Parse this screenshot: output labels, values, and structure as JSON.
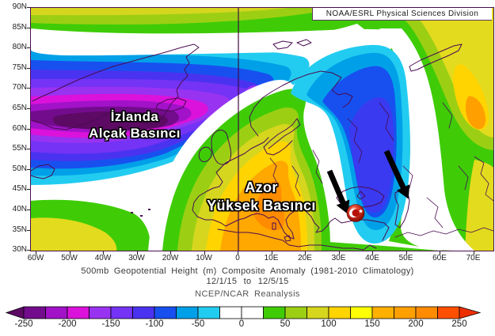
{
  "header": {
    "source_label": "NOAA/ESRL Physical Sciences Division"
  },
  "map": {
    "annotations": {
      "iceland_low_line1": "İzlanda",
      "iceland_low_line2": "Alçak Basıncı",
      "azores_high_line1": "Azor",
      "azores_high_line2": "Yüksek Basıncı"
    },
    "palette": {
      "white": "#FFFFFF",
      "green": "#3FCC07",
      "yellow_green": "#9CCF13",
      "dull_yellow": "#D6D61F",
      "bright_yellow": "#E3DB1E",
      "golden": "#FFD400",
      "orange": "#FFA800",
      "deep_orange": "#FF8C00",
      "right_orange": "#FFA000",
      "cyan": "#22CCF0",
      "sky": "#00A0E8",
      "blue": "#1850F0",
      "indigo": "#4A33F0",
      "purple_blue": "#7433F5",
      "violet": "#9933F2",
      "magenta": "#DB12DB",
      "purple": "#A112C8",
      "dark_purple": "#730C8C",
      "darkest_purple": "#5C0A64",
      "trough_core": "#3A3AF0",
      "coast": "#4A0C52",
      "meridian": "#3F0A3F",
      "arrow_black": "#000000"
    }
  },
  "axes": {
    "lat_ticks": [
      "90N",
      "85N",
      "80N",
      "75N",
      "70N",
      "65N",
      "60N",
      "55N",
      "50N",
      "45N",
      "40N",
      "35N",
      "30N"
    ],
    "lon_ticks": [
      "60W",
      "50W",
      "40W",
      "30W",
      "20W",
      "10W",
      "0",
      "10E",
      "20E",
      "30E",
      "40E",
      "50E",
      "60E",
      "70E"
    ]
  },
  "caption": {
    "line1": "500mb Geopotential Height (m) Composite Anomaly (1981-2010 Climatology)",
    "line2": "12/1/15  to  12/5/15",
    "line3": "NCEP/NCAR Reanalysis"
  },
  "colorbar": {
    "tick_labels": [
      "-250",
      "-200",
      "-150",
      "-100",
      "-50",
      "0",
      "50",
      "100",
      "150",
      "200",
      "250"
    ],
    "segments": [
      "#730C8C",
      "#A112C8",
      "#DB12DB",
      "#9933F2",
      "#7433F5",
      "#4A33F0",
      "#1850F0",
      "#00A0E8",
      "#22CCF0",
      "#FFFFFF",
      "#FFFFFF",
      "#3FCC07",
      "#9CCF13",
      "#D6D61F",
      "#FFD400",
      "#FFFF05",
      "#FFB000",
      "#FFA000",
      "#FF8C00",
      "#FF4F00"
    ],
    "left_arrow": "#5C0A64",
    "right_arrow": "#ED2F00"
  },
  "chart_data": {
    "type": "filled-contour-map",
    "title": "500mb Geopotential Height (m) Composite Anomaly (1981-2010 Climatology)",
    "subtitle": "12/1/15 to 12/5/15",
    "dataset": "NCEP/NCAR Reanalysis",
    "source": "NOAA/ESRL Physical Sciences Division",
    "variable": "500mb geopotential height anomaly",
    "units": "m",
    "lat_range": [
      30,
      90
    ],
    "lon_range": [
      -60,
      75
    ],
    "contour_interval": 25,
    "colorbar_range": [
      -250,
      250
    ],
    "colorbar_ticks": [
      -250,
      -200,
      -150,
      -100,
      -50,
      0,
      50,
      100,
      150,
      200,
      250
    ],
    "features": [
      {
        "label": "İzlanda Alçak Basıncı (Iceland Low)",
        "approx_center": {
          "lat": 62,
          "lon": -25
        },
        "anomaly": "below -250 m"
      },
      {
        "label": "Azor Yüksek Basıncı (Azores/Europe High)",
        "approx_center": {
          "lat": 45,
          "lon": 3
        },
        "anomaly": "+175 to +200 m"
      },
      {
        "label": "Black Sea / Turkey trough (arrows point here)",
        "approx_center": {
          "lat": 43,
          "lon": 38
        },
        "anomaly": "-100 to -125 m"
      },
      {
        "label": "Western Russia ridge",
        "approx_center": {
          "lat": 57,
          "lon": 70
        },
        "anomaly": "+150 to +175 m"
      }
    ]
  }
}
